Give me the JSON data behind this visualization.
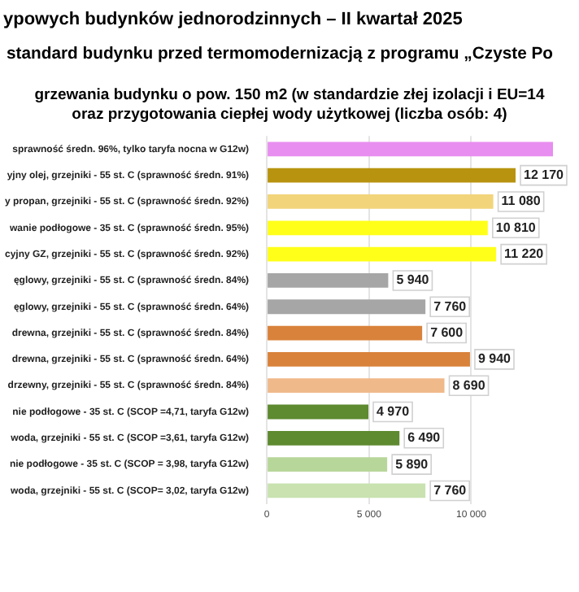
{
  "chart_data": {
    "type": "bar",
    "orientation": "horizontal",
    "title": "ypowych budynków jednorodzinnych – II kwartał 2025",
    "subtitle": "standard budynku przed termomodernizacją z programu „Czyste Po",
    "annotations": [
      "grzewania budynku o pow. 150 m2 (w standardzie złej izolacji i EU=14",
      "oraz przygotowania ciepłej wody użytkowej (liczba osób: 4)"
    ],
    "categories": [
      "sprawność średn. 96%, tylko taryfa nocna w G12w)",
      "yjny olej, grzejniki - 55 st. C (sprawność średn. 91%)",
      "y propan, grzejniki - 55 st. C (sprawność średn. 92%)",
      "wanie podłogowe - 35 st. C (sprawność średn. 95%)",
      "cyjny GZ, grzejniki - 55 st. C (sprawność średn. 92%)",
      "ęglowy, grzejniki - 55 st. C (sprawność średn. 84%)",
      "ęglowy, grzejniki - 55 st. C (sprawność średn. 64%)",
      "drewna, grzejniki - 55 st. C (sprawność średn. 84%)",
      "drewna, grzejniki - 55 st. C (sprawność średn. 64%)",
      "drzewny, grzejniki - 55 st. C (sprawność średn. 84%)",
      "nie podłogowe - 35 st. C (SCOP =4,71, taryfa G12w)",
      "woda, grzejniki - 55 st. C (SCOP =3,61, taryfa G12w)",
      "nie podłogowe - 35 st. C (SCOP = 3,98, taryfa G12w)",
      "woda, grzejniki - 55 st. C (SCOP= 3,02, taryfa G12w)"
    ],
    "values": [
      14000,
      12170,
      11080,
      10810,
      11220,
      5940,
      7760,
      7600,
      9940,
      8690,
      4970,
      6490,
      5890,
      7760
    ],
    "value_labels": [
      null,
      "12 170",
      "11 080",
      "10 810",
      "11 220",
      "5 940",
      "7 760",
      "7 600",
      "9 940",
      "8 690",
      "4 970",
      "6 490",
      "5 890",
      "7 760"
    ],
    "colors": [
      "#e88ef0",
      "#b8930f",
      "#f2d47a",
      "#ffff1a",
      "#ffff1a",
      "#a6a6a6",
      "#a6a6a6",
      "#d9823b",
      "#d9823b",
      "#f0b98a",
      "#5e8a30",
      "#5e8a30",
      "#b7d79a",
      "#c9e2b0"
    ],
    "xlim": [
      0,
      14000
    ],
    "xticks": [
      0,
      {
        "value": 5000,
        "label": "5 000"
      },
      {
        "value": 10000,
        "label": "10 000"
      }
    ],
    "grid": "x",
    "legend": false
  }
}
